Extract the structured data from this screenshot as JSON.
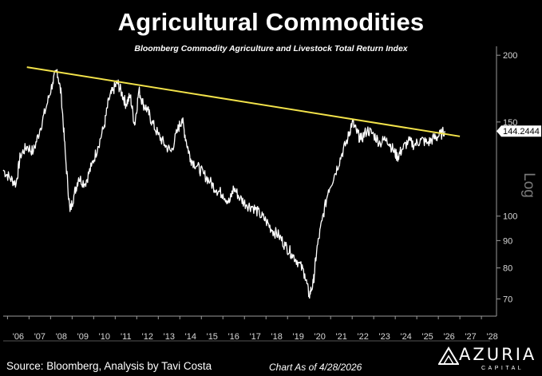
{
  "chart_data": {
    "type": "line",
    "title": "Agricultural Commodities",
    "subtitle": "Bloomberg Commodity Agriculture and Livestock Total Return Index",
    "ylabel": "Log",
    "yscale": "log",
    "ylim": [
      65,
      205
    ],
    "xlim": [
      2005.8,
      2028.7
    ],
    "yticks": [
      200,
      150,
      100,
      90,
      80,
      70
    ],
    "xticks": [
      "'06",
      "'07",
      "'08",
      "'09",
      "'10",
      "'11",
      "'12",
      "'13",
      "'14",
      "'15",
      "'16",
      "'17",
      "'18",
      "'19",
      "'20",
      "'21",
      "'22",
      "'23",
      "'24",
      "'25",
      "'26",
      "'27",
      "'28"
    ],
    "last_value_label": "144.2444",
    "series": [
      {
        "color": "#ffffff",
        "x": [
          2005.8,
          2006.1,
          2006.4,
          2006.6,
          2006.9,
          2007.2,
          2007.5,
          2007.8,
          2008.1,
          2008.3,
          2008.5,
          2008.7,
          2008.9,
          2009.1,
          2009.3,
          2009.6,
          2009.9,
          2010.2,
          2010.5,
          2010.7,
          2010.9,
          2011.1,
          2011.3,
          2011.5,
          2011.7,
          2011.9,
          2012.1,
          2012.3,
          2012.5,
          2012.7,
          2013.0,
          2013.3,
          2013.6,
          2013.9,
          2014.1,
          2014.3,
          2014.5,
          2014.8,
          2015.1,
          2015.4,
          2015.7,
          2016.0,
          2016.3,
          2016.5,
          2016.8,
          2017.1,
          2017.4,
          2017.7,
          2018.0,
          2018.3,
          2018.6,
          2018.9,
          2019.2,
          2019.5,
          2019.8,
          2020.0,
          2020.2,
          2020.35,
          2020.6,
          2020.9,
          2021.2,
          2021.5,
          2021.8,
          2022.0,
          2022.2,
          2022.4,
          2022.7,
          2023.0,
          2023.3,
          2023.6,
          2023.9,
          2024.1,
          2024.3,
          2024.6,
          2024.9,
          2025.2,
          2025.5,
          2025.8,
          2026.0,
          2026.3
        ],
        "y": [
          122,
          118,
          115,
          130,
          135,
          132,
          145,
          160,
          178,
          188,
          168,
          128,
          102,
          110,
          118,
          115,
          124,
          135,
          148,
          165,
          172,
          178,
          170,
          162,
          168,
          148,
          172,
          162,
          158,
          150,
          142,
          136,
          132,
          145,
          152,
          138,
          128,
          124,
          120,
          116,
          112,
          110,
          106,
          113,
          108,
          105,
          104,
          101,
          98,
          94,
          92,
          88,
          85,
          82,
          78,
          71,
          75,
          86,
          98,
          112,
          120,
          130,
          140,
          150,
          144,
          139,
          145,
          142,
          137,
          140,
          133,
          129,
          133,
          138,
          136,
          139,
          137,
          140,
          141,
          144.24
        ]
      },
      {
        "color": "#f2e24a",
        "x": [
          2006.9,
          2027.0
        ],
        "y": [
          190,
          141
        ]
      }
    ]
  },
  "footer": {
    "source": "Source: Bloomberg, Analysis by Tavi Costa",
    "as_of": "Chart As of 4/28/2026"
  },
  "logo": {
    "name": "AZURIA",
    "sub": "CAPITAL",
    "icon": "azuria-mountain-logo-icon"
  },
  "colors": {
    "background": "#000000",
    "price_line": "#ffffff",
    "trend_line": "#f2e24a",
    "axis": "#9a9a9a"
  }
}
